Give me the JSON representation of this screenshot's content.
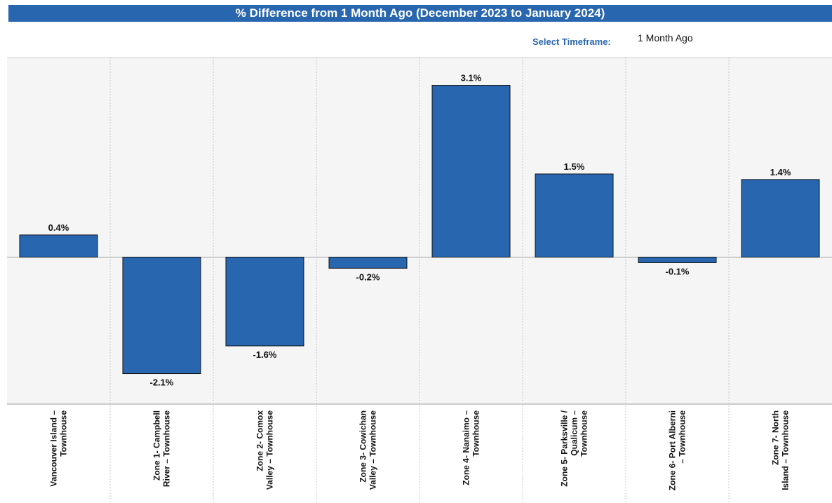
{
  "header": {
    "title": "% Difference from 1 Month Ago (December 2023 to January 2024)"
  },
  "timeframe": {
    "label": "Select Timeframe:",
    "value": "1 Month Ago"
  },
  "colors": {
    "bar": "#2866b0",
    "bar_outline": "#111111",
    "plot_bg": "#f5f5f5",
    "gridline": "#c8c8c8",
    "title_bg": "#2866b0"
  },
  "chart_data": {
    "type": "bar",
    "categories": [
      [
        "Vancouver Island –",
        "Townhouse"
      ],
      [
        "Zone 1- Campbell",
        "River – Townhouse"
      ],
      [
        "Zone 2- Comox",
        "Valley – Townhouse"
      ],
      [
        "Zone 3- Cowichan",
        "Valley – Townhouse"
      ],
      [
        "Zone 4- Nanaimo –",
        "Townhouse"
      ],
      [
        "Zone 5- Parksville /",
        "Qualicum –",
        "Townhouse"
      ],
      [
        "Zone 6- Port Alberni",
        "– Townhouse"
      ],
      [
        "Zone 7- North",
        "Island – Townhouse"
      ]
    ],
    "values": [
      0.4,
      -2.1,
      -1.6,
      -0.2,
      3.1,
      1.5,
      -0.1,
      1.4
    ],
    "data_labels": [
      "0.4%",
      "-2.1%",
      "-1.6%",
      "-0.2%",
      "3.1%",
      "1.5%",
      "-0.1%",
      "1.4%"
    ],
    "title": "% Difference from 1 Month Ago (December 2023 to January 2024)",
    "ylim": [
      -2.65,
      3.6
    ],
    "grid": "vertical-dotted",
    "legend": "none"
  }
}
